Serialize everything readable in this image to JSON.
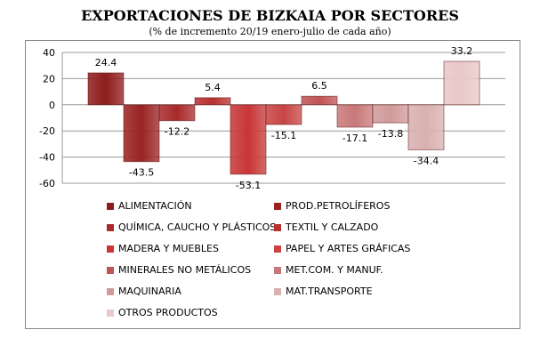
{
  "chart_data": {
    "type": "bar",
    "title": "EXPORTACIONES DE BIZKAIA POR SECTORES",
    "subtitle": "(% de incremento 20/19 enero-julio de cada año)",
    "categories": [
      "ALIMENTACIÓN",
      "QUÍMICA, CAUCHO Y PLÁSTICOS",
      "MADERA Y MUEBLES",
      "MINERALES NO METÁLICOS",
      "MAQUINARIA",
      "OTROS PRODUCTOS",
      "PROD.PETROLÍFEROS",
      "TEXTIL Y CALZADO",
      "PAPEL Y ARTES GRÁFICAS",
      "MET.COM. Y MANUF.",
      "MAT.TRANSPORTE"
    ],
    "bar_order": [
      "ALIMENTACIÓN",
      "PROD.PETROLÍFEROS",
      "QUÍMICA, CAUCHO Y PLÁSTICOS",
      "TEXTIL Y CALZADO",
      "MADERA Y MUEBLES",
      "PAPEL Y ARTES GRÁFICAS",
      "MINERALES NO METÁLICOS",
      "MET.COM. Y MANUF.",
      "MAQUINARIA",
      "MAT.TRANSPORTE",
      "OTROS PRODUCTOS"
    ],
    "values": [
      24.4,
      -43.5,
      -12.2,
      5.4,
      -53.1,
      -15.1,
      6.5,
      -17.1,
      -13.8,
      -34.4,
      33.2
    ],
    "labels": [
      "24.4",
      "-43.5",
      "-12.2",
      "5.4",
      "-53.1",
      "-15.1",
      "6.5",
      "-17.1",
      "-13.8",
      "-34.4",
      "33.2"
    ],
    "colors": [
      "#8e1c1c",
      "#9a2222",
      "#a82a2a",
      "#b83030",
      "#c83636",
      "#c84444",
      "#c05454",
      "#c87878",
      "#d09a9a",
      "#dab0b0",
      "#e8c8c8"
    ],
    "ylim": [
      -60,
      40
    ],
    "yticks": [
      "40",
      "20",
      "0",
      "-20",
      "-40",
      "-60"
    ],
    "grid": true,
    "legend": "bottom"
  }
}
